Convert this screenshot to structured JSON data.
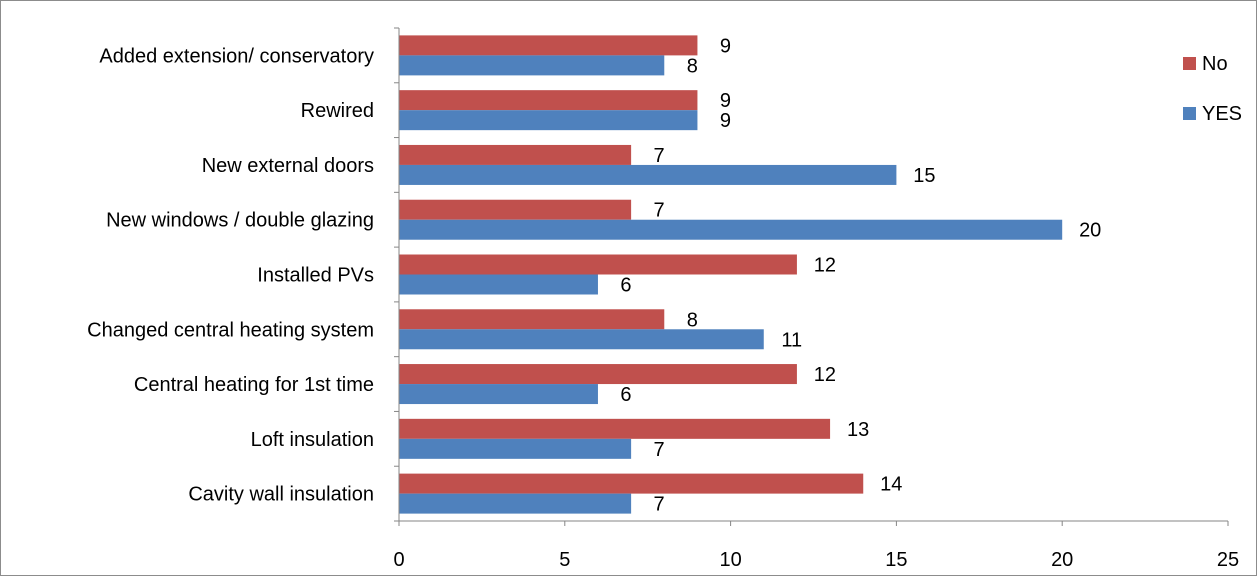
{
  "chart_data": {
    "type": "bar",
    "orientation": "horizontal",
    "title": "",
    "xlabel": "",
    "ylabel": "",
    "categories": [
      "Added extension/ conservatory",
      "Rewired",
      "New external doors",
      "New windows / double glazing",
      "Installed PVs",
      "Changed central heating system",
      "Central heating for 1st time",
      "Loft insulation",
      "Cavity wall insulation"
    ],
    "series": [
      {
        "name": "No",
        "color": "#C0504D",
        "values": [
          9,
          9,
          7,
          7,
          12,
          8,
          12,
          13,
          14
        ]
      },
      {
        "name": "YES",
        "color": "#4F81BD",
        "values": [
          8,
          9,
          15,
          20,
          6,
          11,
          6,
          7,
          7
        ]
      }
    ],
    "xlim": [
      0,
      25
    ],
    "xticks": [
      "0",
      "5",
      "10",
      "15",
      "20",
      "25"
    ],
    "data_labels": true,
    "grid": false,
    "legend": "right"
  }
}
